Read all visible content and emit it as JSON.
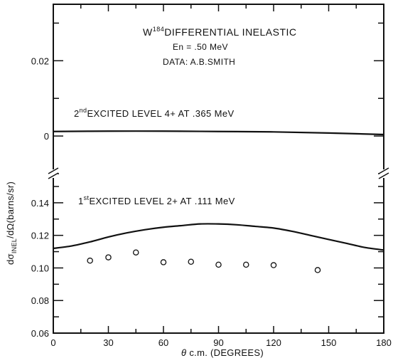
{
  "chart_data": {
    "type": "line",
    "title": {
      "element": "W",
      "mass_number": "184",
      "rest": "DIFFERENTIAL  INELASTIC"
    },
    "energy_label": "En = .50 MeV",
    "data_source": "DATA: A.B.SMITH",
    "xlabel": {
      "theta": "θ",
      "rest": "c.m. (DEGREES)"
    },
    "ylabel": {
      "prefix": "dσ",
      "sub": "INEL",
      "rest": "/dΩ(barns/sr)"
    },
    "xlim": [
      0,
      180
    ],
    "x_ticks": [
      "0",
      "30",
      "60",
      "90",
      "120",
      "150",
      "180"
    ],
    "y_ticks_lower": [
      "0.06",
      "0.08",
      "0.10",
      "0.12",
      "0.14"
    ],
    "y_ticks_upper": [
      "0",
      "0.02"
    ],
    "ylim_lower": [
      0.06,
      0.15
    ],
    "ylim_upper": [
      -0.01,
      0.035
    ],
    "broken_y_axis": true,
    "grid": false,
    "levels": [
      {
        "order": "2",
        "suffix": "nd",
        "text": "EXCITED LEVEL 4+ AT .365 MeV"
      },
      {
        "order": "1",
        "suffix": "st",
        "text": "EXCITED LEVEL 2+ AT .111 MeV"
      }
    ],
    "series": [
      {
        "kind": "theory-curve",
        "panel": "upper",
        "x": [
          0,
          30,
          60,
          90,
          120,
          150,
          180
        ],
        "y": [
          0.0012,
          0.0013,
          0.0013,
          0.0012,
          0.0011,
          0.0008,
          0.0004
        ]
      },
      {
        "kind": "theory-curve",
        "panel": "lower",
        "x": [
          0,
          10,
          20,
          30,
          40,
          50,
          60,
          70,
          80,
          90,
          100,
          110,
          120,
          130,
          140,
          150,
          160,
          170,
          180
        ],
        "y": [
          0.112,
          0.1135,
          0.116,
          0.119,
          0.1215,
          0.1235,
          0.125,
          0.126,
          0.127,
          0.127,
          0.1265,
          0.1255,
          0.1245,
          0.1225,
          0.12,
          0.1175,
          0.115,
          0.1125,
          0.111
        ]
      },
      {
        "kind": "data-points",
        "panel": "lower",
        "x": [
          20,
          30,
          45,
          60,
          75,
          90,
          105,
          120,
          144
        ],
        "y": [
          0.1045,
          0.1065,
          0.1095,
          0.1035,
          0.1038,
          0.102,
          0.102,
          0.1017,
          0.0987
        ]
      }
    ]
  }
}
